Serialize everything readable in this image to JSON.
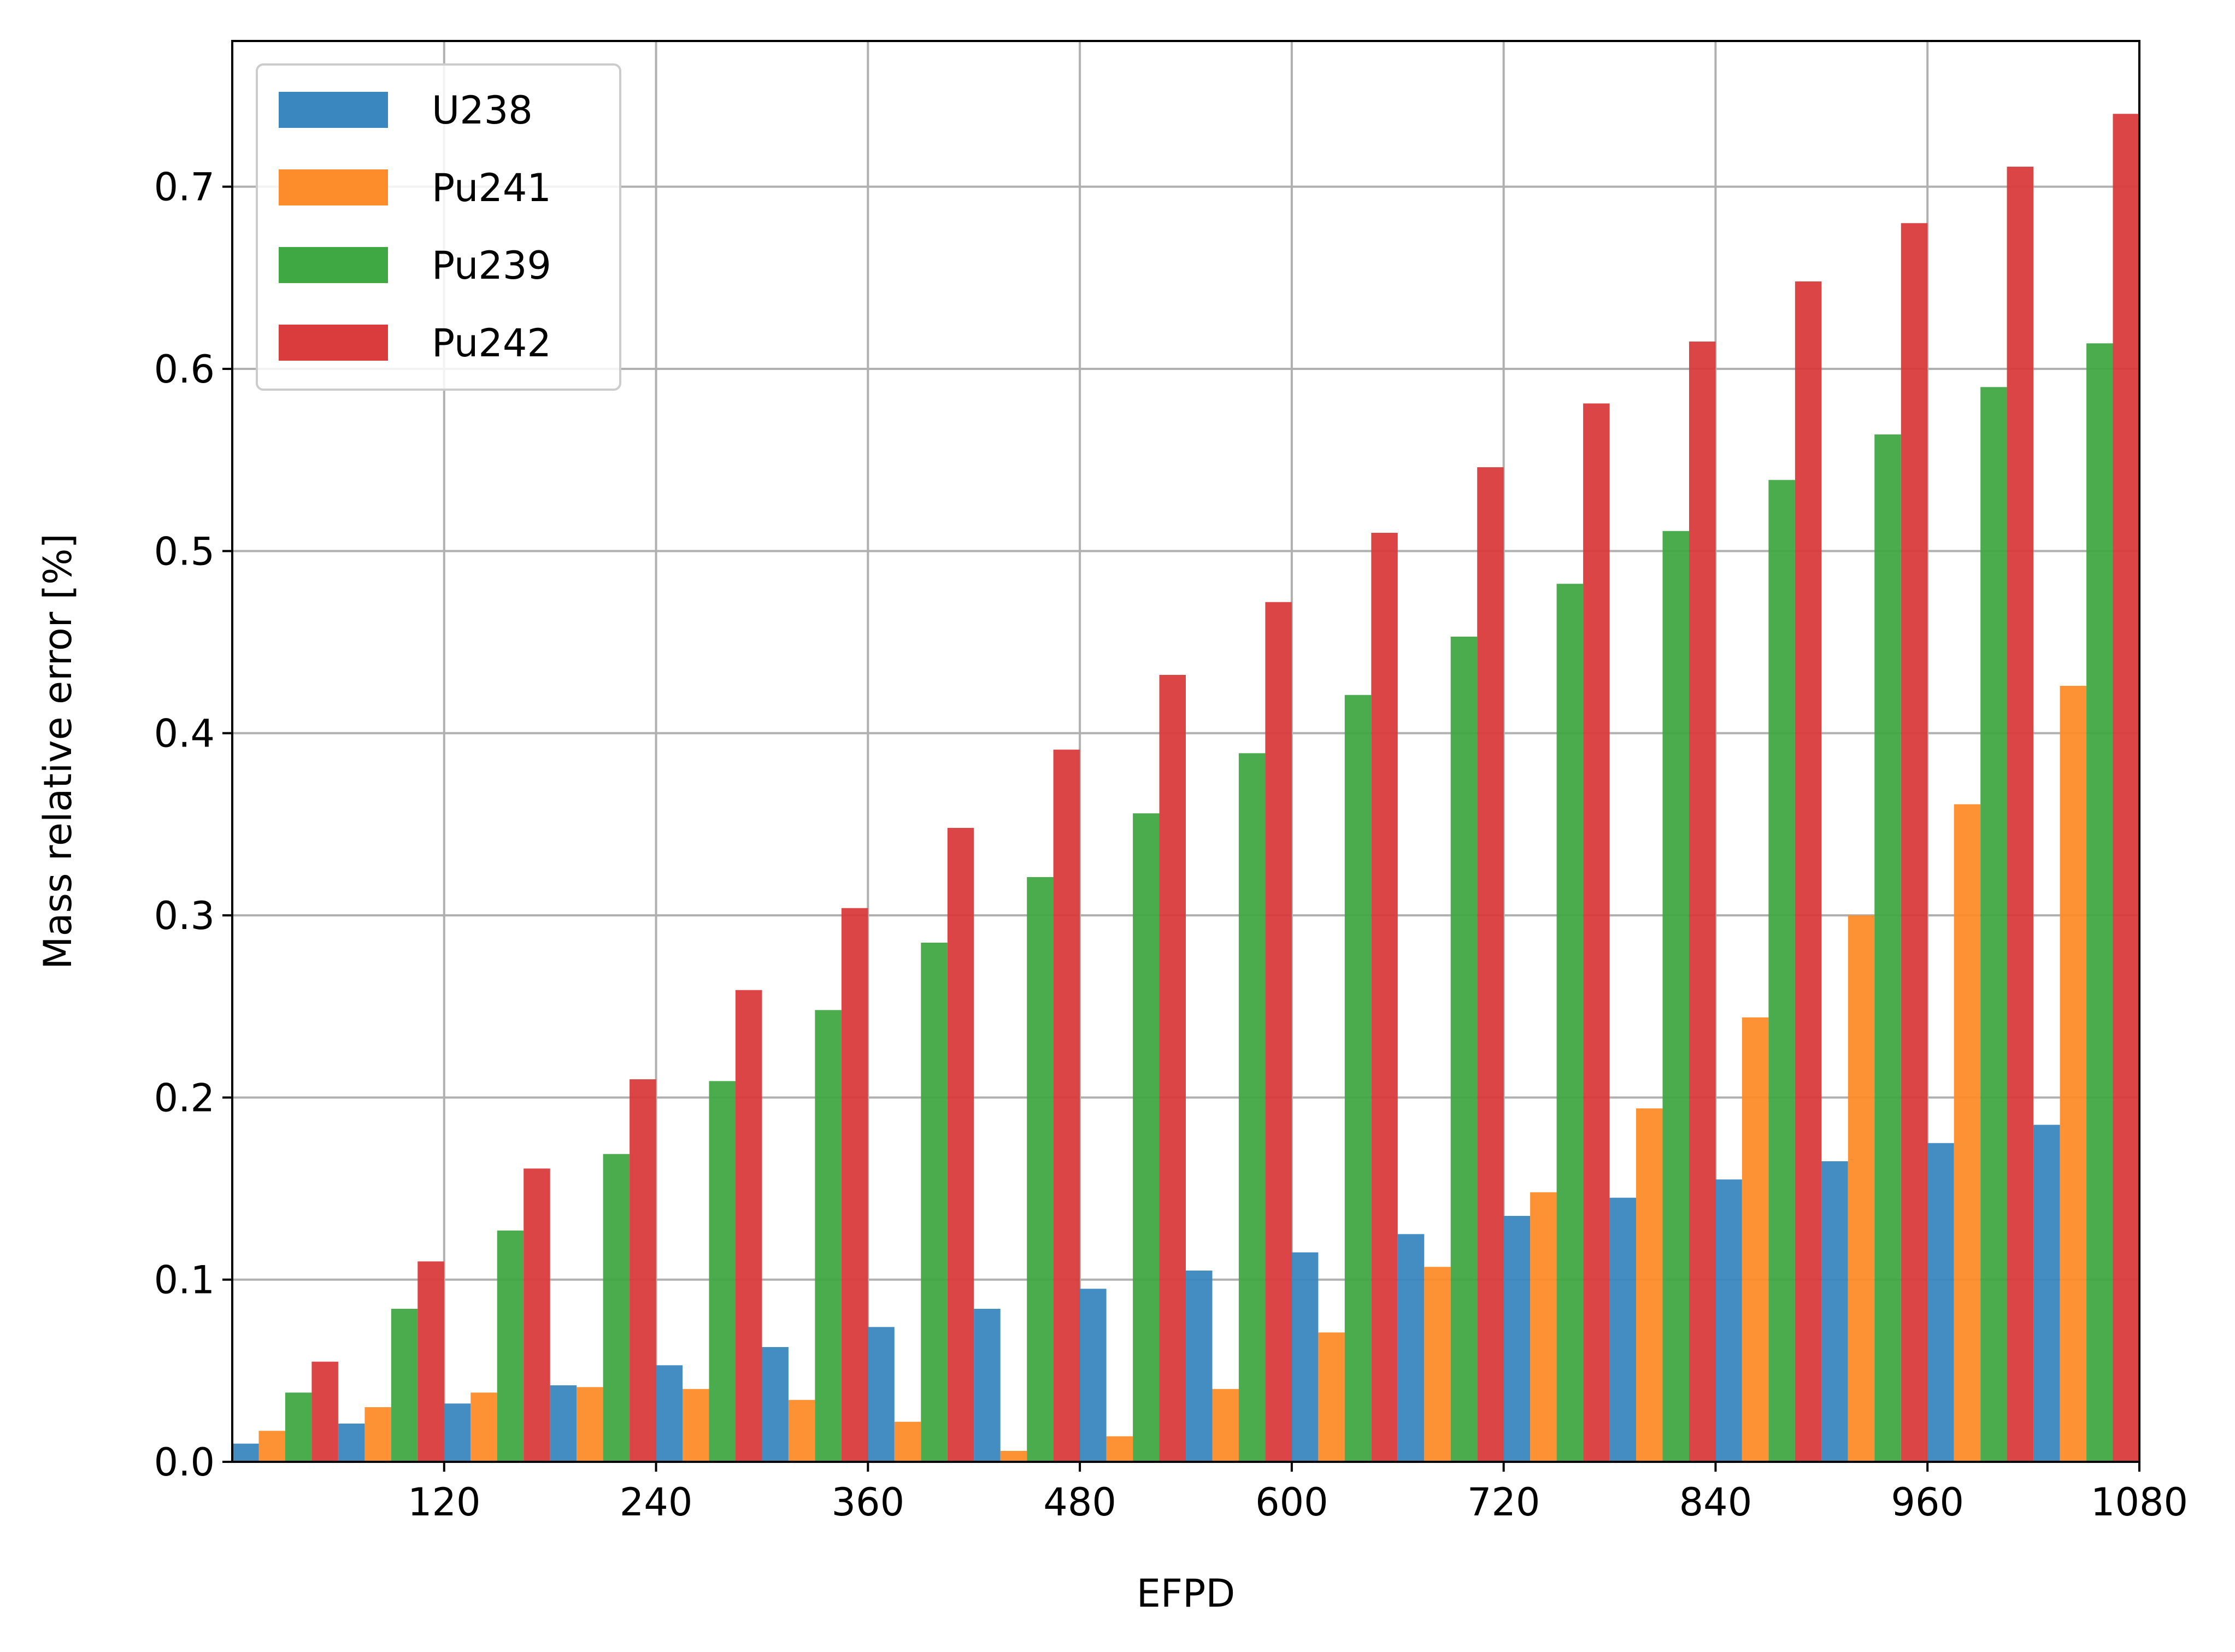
{
  "chart_data": {
    "type": "bar",
    "title": "",
    "xlabel": "EFPD",
    "ylabel": "Mass relative error [%]",
    "xlim": [
      0,
      1080
    ],
    "ylim": [
      0,
      0.78
    ],
    "xticks": [
      "120",
      "240",
      "360",
      "480",
      "600",
      "720",
      "840",
      "960",
      "1080"
    ],
    "yticks": [
      "0.0",
      "0.1",
      "0.2",
      "0.3",
      "0.4",
      "0.5",
      "0.6",
      "0.7"
    ],
    "grid": true,
    "legend_position": "top-left",
    "categories": [
      60,
      120,
      180,
      240,
      300,
      360,
      420,
      480,
      540,
      600,
      660,
      720,
      780,
      840,
      900,
      960,
      1020,
      1080
    ],
    "series": [
      {
        "name": "U238",
        "color": "#3a87c0",
        "values": [
          0.01,
          0.021,
          0.032,
          0.042,
          0.053,
          0.063,
          0.074,
          0.084,
          0.095,
          0.105,
          0.115,
          0.125,
          0.135,
          0.145,
          0.155,
          0.165,
          0.175,
          0.185
        ]
      },
      {
        "name": "Pu241",
        "color": "#fd8c2a",
        "values": [
          0.017,
          0.03,
          0.038,
          0.041,
          0.04,
          0.034,
          0.022,
          0.006,
          0.014,
          0.04,
          0.071,
          0.107,
          0.148,
          0.194,
          0.244,
          0.3,
          0.361,
          0.426
        ]
      },
      {
        "name": "Pu239",
        "color": "#40a842",
        "values": [
          0.038,
          0.084,
          0.127,
          0.169,
          0.209,
          0.248,
          0.285,
          0.321,
          0.356,
          0.389,
          0.421,
          0.453,
          0.482,
          0.511,
          0.539,
          0.564,
          0.59,
          0.614
        ]
      },
      {
        "name": "Pu242",
        "color": "#da3b3c",
        "values": [
          0.055,
          0.11,
          0.161,
          0.21,
          0.259,
          0.304,
          0.348,
          0.391,
          0.432,
          0.472,
          0.51,
          0.546,
          0.581,
          0.615,
          0.648,
          0.68,
          0.711,
          0.74
        ]
      }
    ]
  }
}
